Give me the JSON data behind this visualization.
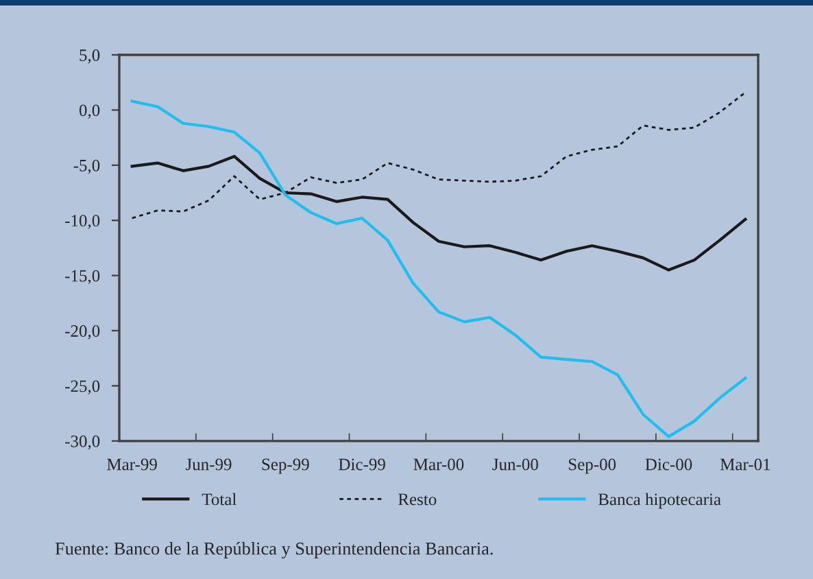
{
  "chart_data": {
    "type": "line",
    "categories": [
      "Mar-99",
      null,
      null,
      "Jun-99",
      null,
      null,
      "Sep-99",
      null,
      null,
      "Dic-99",
      null,
      null,
      "Mar-00",
      null,
      null,
      "Jun-00",
      null,
      null,
      "Sep-00",
      null,
      null,
      "Dic-00",
      null,
      null,
      "Mar-01"
    ],
    "series": [
      {
        "name": "Total",
        "color": "#1a1a1a",
        "line_style": "solid",
        "values": [
          -5.1,
          -4.8,
          -5.5,
          -5.1,
          -4.2,
          -6.2,
          -7.5,
          -7.6,
          -8.3,
          -7.9,
          -8.1,
          -10.2,
          -11.9,
          -12.4,
          -12.3,
          -12.9,
          -13.6,
          -12.8,
          -12.3,
          -12.8,
          -13.4,
          -14.5,
          -13.6,
          -11.8,
          -9.9
        ]
      },
      {
        "name": "Resto",
        "color": "#1a1a1a",
        "line_style": "dotted",
        "values": [
          -9.8,
          -9.1,
          -9.2,
          -8.2,
          -6.0,
          -8.1,
          -7.5,
          -6.1,
          -6.6,
          -6.3,
          -4.8,
          -5.4,
          -6.3,
          -6.4,
          -6.5,
          -6.4,
          -6.0,
          -4.2,
          -3.6,
          -3.3,
          -1.4,
          -1.8,
          -1.6,
          -0.2,
          1.6
        ]
      },
      {
        "name": "Banca hipotecaria",
        "color": "#1ebef0",
        "line_style": "solid",
        "values": [
          0.8,
          0.3,
          -1.2,
          -1.5,
          -2.0,
          -3.9,
          -7.7,
          -9.3,
          -10.3,
          -9.8,
          -11.8,
          -15.7,
          -18.3,
          -19.2,
          -18.8,
          -20.4,
          -22.4,
          -22.6,
          -22.8,
          -24.0,
          -27.6,
          -29.6,
          -28.2,
          -26.1,
          -24.3
        ]
      }
    ],
    "ylim": [
      -30,
      5
    ],
    "yticks": [
      {
        "value": 5,
        "label": "5,0"
      },
      {
        "value": 0,
        "label": "0,0"
      },
      {
        "value": -5,
        "label": "-5,0"
      },
      {
        "value": -10,
        "label": "-10,0"
      },
      {
        "value": -15,
        "label": "-15,0"
      },
      {
        "value": -20,
        "label": "-20,0"
      },
      {
        "value": -25,
        "label": "-25,0"
      },
      {
        "value": -30,
        "label": "-30,0"
      }
    ],
    "legend": "bottom",
    "annotations": [
      "Fuente: Banco de la República y Superintendencia Bancaria."
    ]
  }
}
